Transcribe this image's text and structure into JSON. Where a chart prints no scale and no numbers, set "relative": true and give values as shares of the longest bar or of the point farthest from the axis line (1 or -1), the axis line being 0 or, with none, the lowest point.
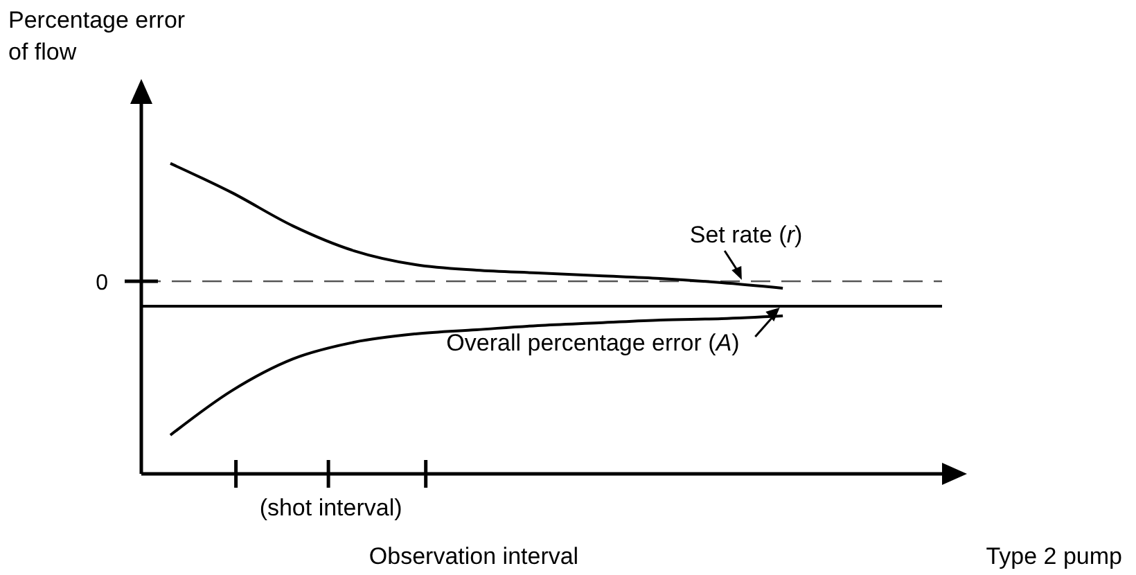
{
  "chart_data": {
    "type": "line",
    "relative": true,
    "ylabel": "Percentage error\nof flow",
    "xlabel": "Observation interval",
    "categories": [
      null,
      null,
      null,
      null,
      null,
      null,
      null,
      null,
      null,
      null,
      null
    ],
    "series": [
      {
        "color": "#000000",
        "values": [
          0.766,
          0.577,
          0.36,
          0.198,
          0.108,
          0.072,
          0.054,
          0.036,
          0.018,
          -0.009,
          -0.045
        ]
      },
      {
        "color": "#000000",
        "values": [
          -1,
          -0.712,
          -0.505,
          -0.396,
          -0.342,
          -0.315,
          -0.288,
          -0.27,
          -0.252,
          -0.243,
          -0.225
        ]
      }
    ],
    "ref_lines": [
      {
        "axis": "y",
        "value": 0,
        "label": "0",
        "line_style": "dashed",
        "color": "#555555"
      },
      {
        "axis": "y",
        "value": -0.162,
        "line_style": "solid",
        "color": "#000000"
      }
    ],
    "annotations": [
      "Set rate (r)",
      "Overall percentage error (A)",
      "(shot interval)",
      "Type 2 pump"
    ],
    "marker": "none",
    "line_style": "solid"
  }
}
